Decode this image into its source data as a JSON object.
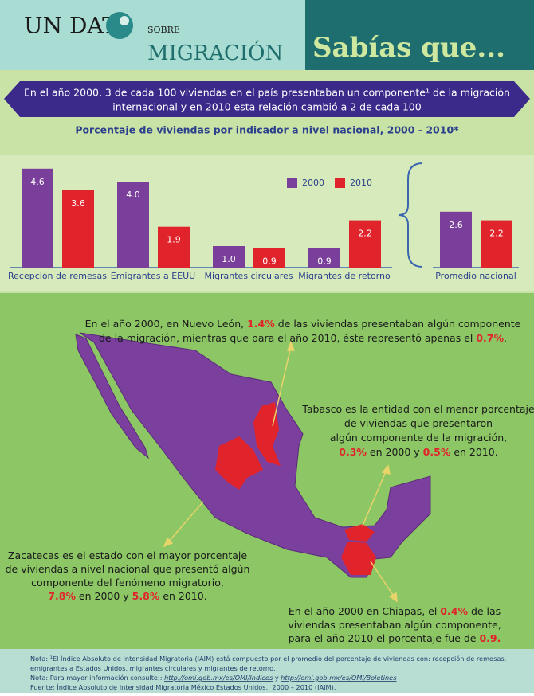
{
  "header": {
    "logo_top": "UN DAT",
    "logo_small": "SOBRE",
    "logo_bottom": "MIGRACIÓN",
    "title": "Sabías que..."
  },
  "banner": {
    "lines": [
      "En el año 2000, 3 de cada 100 viviendas en el país presentaban un componente¹ de la migración",
      "internacional y en 2010 esta relación cambió a 2 de cada 100"
    ]
  },
  "chart_data": {
    "type": "bar",
    "title": "Porcentaje de viviendas por indicador a nivel nacional, 2000 - 2010*",
    "categories": [
      "Recepción de remesas",
      "Emigrantes a EEUU",
      "Migrantes circulares",
      "Migrantes de retorno",
      "Promedio nacional"
    ],
    "series": [
      {
        "name": "2000",
        "color": "#7a3f9a",
        "values": [
          4.6,
          4.0,
          1.0,
          0.9,
          2.6
        ],
        "value_labels": [
          "4.6",
          "4.0",
          "1.0",
          "0.9",
          "2.6"
        ]
      },
      {
        "name": "2010",
        "color": "#e1242b",
        "values": [
          3.6,
          1.9,
          0.9,
          2.2,
          2.2
        ],
        "value_labels": [
          "3.6",
          "1.9",
          "0.9",
          "2.2",
          "2.2"
        ]
      }
    ],
    "ylim": [
      0,
      5
    ]
  },
  "map": {
    "annotations": [
      {
        "lines": [
          [
            "En el año 2000, en Nuevo León, ",
            {
              "text": "1.4%",
              "bold": true
            },
            " de las viviendas presentaban algún componente"
          ],
          [
            "de la migración, mientras que para el año 2010, éste representó apenas el ",
            {
              "text": "0.7%",
              "bold": true
            },
            "."
          ]
        ]
      },
      {
        "lines": [
          [
            "Tabasco es la entidad con el menor porcentaje"
          ],
          [
            "de viviendas que presentaron"
          ],
          [
            "algún componente de la migración,"
          ],
          [
            {
              "text": "0.3%",
              "bold": true
            },
            " en 2000 y ",
            {
              "text": "0.5%",
              "bold": true
            },
            " en 2010."
          ]
        ]
      },
      {
        "lines": [
          [
            "Zacatecas es el estado con el mayor porcentaje"
          ],
          [
            "de viviendas a nivel nacional que presentó algún"
          ],
          [
            "componente del fenómeno migratorio,"
          ],
          [
            {
              "text": "7.8%",
              "bold": true
            },
            " en 2000 y ",
            {
              "text": "5.8%",
              "bold": true
            },
            " en 2010."
          ]
        ]
      },
      {
        "lines": [
          [
            "En el año 2000 en Chiapas, el ",
            {
              "text": "0.4%",
              "bold": true
            },
            " de las"
          ],
          [
            "viviendas presentaban algún componente,"
          ],
          [
            "para el año 2010 el porcentaje fue de ",
            {
              "text": "0.9.",
              "bold": true
            }
          ]
        ]
      }
    ]
  },
  "footer": {
    "lines": [
      [
        "Nota: ¹El Índice Absoluto de Intensidad Migratoria (IAIM) está compuesto por el promedio del porcentaje de viviendas con: recepción de remesas,"
      ],
      [
        "emigrantes a Estados Unidos, migrantes circulares y migrantes de retorno."
      ],
      [
        "Nota: Para mayor información consulte:: ",
        {
          "text": "http://omi.gob.mx/es/OMI/Indices",
          "link": true
        },
        " y ",
        {
          "text": "http://omi.gob.mx/es/OMI/Boletines",
          "link": true
        }
      ],
      [
        "Fuente: Índice Absoluto de Intensidad Migratoria México Estados Unidos,, 2000 – 2010 (IAIM)."
      ]
    ]
  }
}
